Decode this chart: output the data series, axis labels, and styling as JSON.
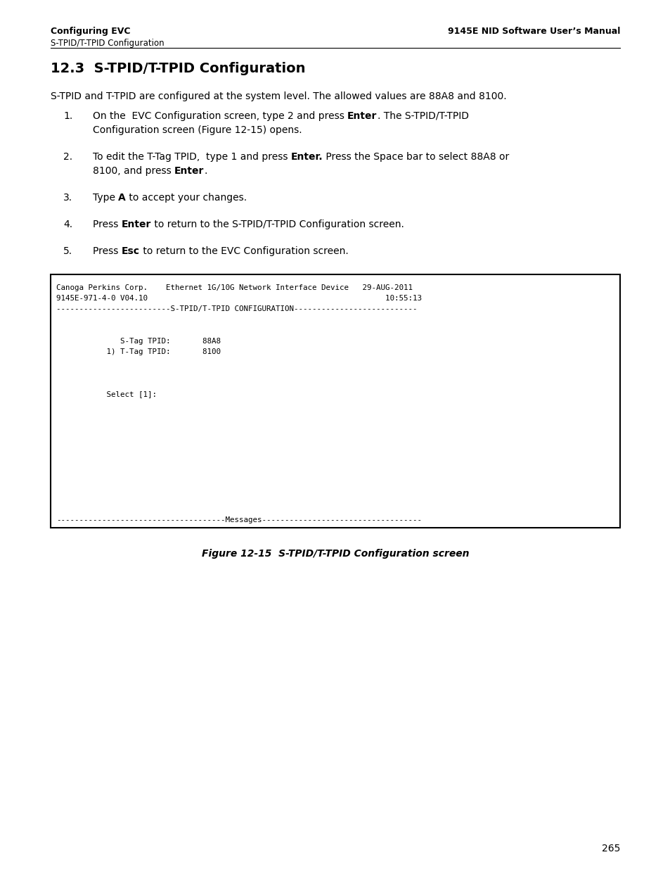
{
  "page_bg": "#ffffff",
  "header_left_bold": "Configuring EVC",
  "header_right_bold": "9145E NID Software User’s Manual",
  "header_left_sub": "S-TPID/T-TPID Configuration",
  "section_title": "12.3  S-TPID/T-TPID Configuration",
  "intro_text": "S-TPID and T-TPID are configured at the system level. The allowed values are 88A8 and 8100.",
  "terminal_header_line1": "Canoga Perkins Corp.    Ethernet 1G/10G Network Interface Device   29-AUG-2011",
  "terminal_header_line2": "9145E-971-4-0 V04.10                                                    10:55:13",
  "terminal_divider1": "-------------------------S-TPID/T-TPID CONFIGURATION---------------------------",
  "terminal_line_stag": "              S-Tag TPID:       88A8",
  "terminal_line_ttag": "           1) T-Tag TPID:       8100",
  "terminal_line_select": "           Select [1]:",
  "terminal_divider2": "-------------------------------------Messages-----------------------------------",
  "figure_caption": "Figure 12-15  S-TPID/T-TPID Configuration screen",
  "page_number": "265"
}
